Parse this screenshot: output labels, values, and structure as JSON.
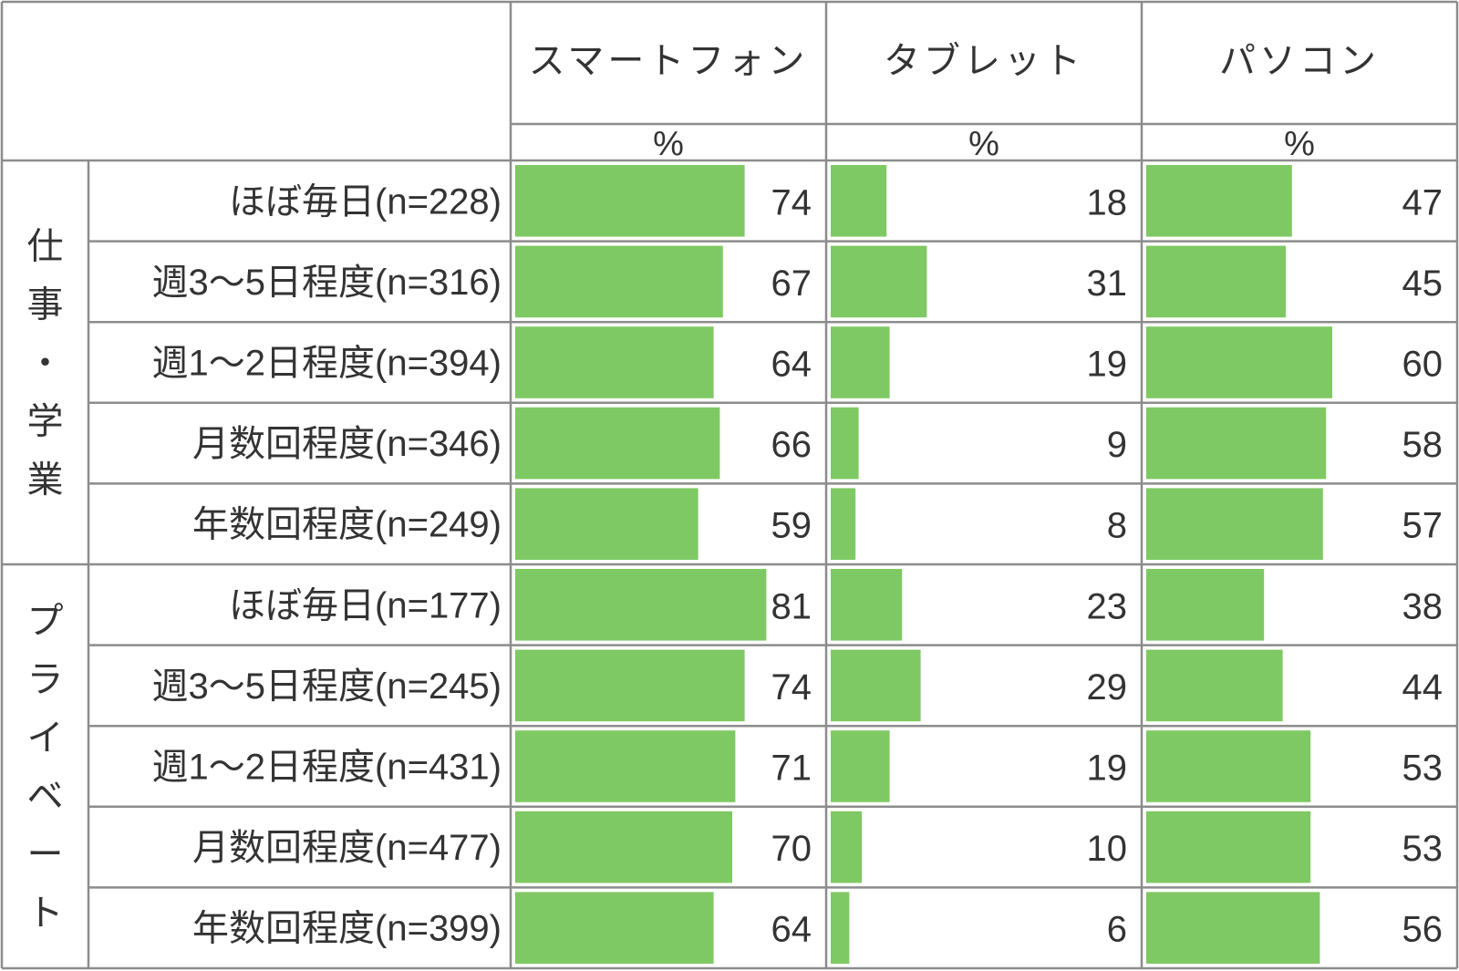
{
  "chart_data": {
    "type": "bar",
    "title": "",
    "columns": [
      {
        "name": "スマートフォン",
        "unit": "%"
      },
      {
        "name": "タブレット",
        "unit": "%"
      },
      {
        "name": "パソコン",
        "unit": "%"
      }
    ],
    "groups": [
      {
        "name": "仕事・学業",
        "rows": [
          {
            "label": "ほぼ毎日(n=228)",
            "values": [
              74,
              18,
              47
            ]
          },
          {
            "label": "週3～5日程度(n=316)",
            "values": [
              67,
              31,
              45
            ]
          },
          {
            "label": "週1～2日程度(n=394)",
            "values": [
              64,
              19,
              60
            ]
          },
          {
            "label": "月数回程度(n=346)",
            "values": [
              66,
              9,
              58
            ]
          },
          {
            "label": "年数回程度(n=249)",
            "values": [
              59,
              8,
              57
            ]
          }
        ]
      },
      {
        "name": "プライベート",
        "rows": [
          {
            "label": "ほぼ毎日(n=177)",
            "values": [
              81,
              23,
              38
            ]
          },
          {
            "label": "週3～5日程度(n=245)",
            "values": [
              74,
              29,
              44
            ]
          },
          {
            "label": "週1～2日程度(n=431)",
            "values": [
              71,
              19,
              53
            ]
          },
          {
            "label": "月数回程度(n=477)",
            "values": [
              70,
              10,
              53
            ]
          },
          {
            "label": "年数回程度(n=399)",
            "values": [
              64,
              6,
              56
            ]
          }
        ]
      }
    ],
    "xlim": [
      0,
      100
    ],
    "colors": {
      "bar": "#7ec963",
      "grid": "#8c8c8c",
      "text": "#333333"
    }
  }
}
